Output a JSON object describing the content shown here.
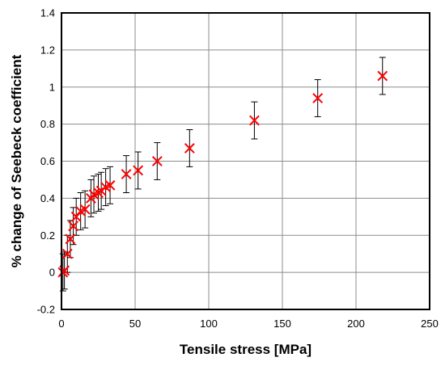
{
  "chart_data": {
    "type": "scatter",
    "title": "",
    "xlabel": "Tensile stress [MPa]",
    "ylabel": "% change of Seebeck coefficient",
    "xlim": [
      0,
      250
    ],
    "ylim": [
      -0.2,
      1.4
    ],
    "xticks": [
      0,
      50,
      100,
      150,
      200,
      250
    ],
    "yticks": [
      -0.2,
      0,
      0.2,
      0.4,
      0.6,
      0.8,
      1,
      1.2,
      1.4
    ],
    "xtick_labels": [
      "0",
      "50",
      "100",
      "150",
      "200",
      "250"
    ],
    "ytick_labels": [
      "-0.2",
      "0",
      "0.2",
      "0.4",
      "0.6",
      "0.8",
      "1",
      "1.2",
      "1.4"
    ],
    "grid": true,
    "marker": "x",
    "marker_color": "#ff0000",
    "errorbar_color": "#000000",
    "points": [
      {
        "x": 1,
        "y": 0.0,
        "err": 0.1
      },
      {
        "x": 2,
        "y": 0.01,
        "err": 0.1
      },
      {
        "x": 4,
        "y": 0.1,
        "err": 0.1
      },
      {
        "x": 6,
        "y": 0.18,
        "err": 0.1
      },
      {
        "x": 8,
        "y": 0.25,
        "err": 0.1
      },
      {
        "x": 10,
        "y": 0.3,
        "err": 0.1
      },
      {
        "x": 13,
        "y": 0.33,
        "err": 0.1
      },
      {
        "x": 16,
        "y": 0.34,
        "err": 0.1
      },
      {
        "x": 20,
        "y": 0.4,
        "err": 0.1
      },
      {
        "x": 22,
        "y": 0.42,
        "err": 0.1
      },
      {
        "x": 25,
        "y": 0.43,
        "err": 0.1
      },
      {
        "x": 27,
        "y": 0.44,
        "err": 0.1
      },
      {
        "x": 30,
        "y": 0.46,
        "err": 0.1
      },
      {
        "x": 33,
        "y": 0.47,
        "err": 0.1
      },
      {
        "x": 44,
        "y": 0.53,
        "err": 0.1
      },
      {
        "x": 52,
        "y": 0.55,
        "err": 0.1
      },
      {
        "x": 65,
        "y": 0.6,
        "err": 0.1
      },
      {
        "x": 87,
        "y": 0.67,
        "err": 0.1
      },
      {
        "x": 131,
        "y": 0.82,
        "err": 0.1
      },
      {
        "x": 174,
        "y": 0.94,
        "err": 0.1
      },
      {
        "x": 218,
        "y": 1.06,
        "err": 0.1
      }
    ]
  }
}
